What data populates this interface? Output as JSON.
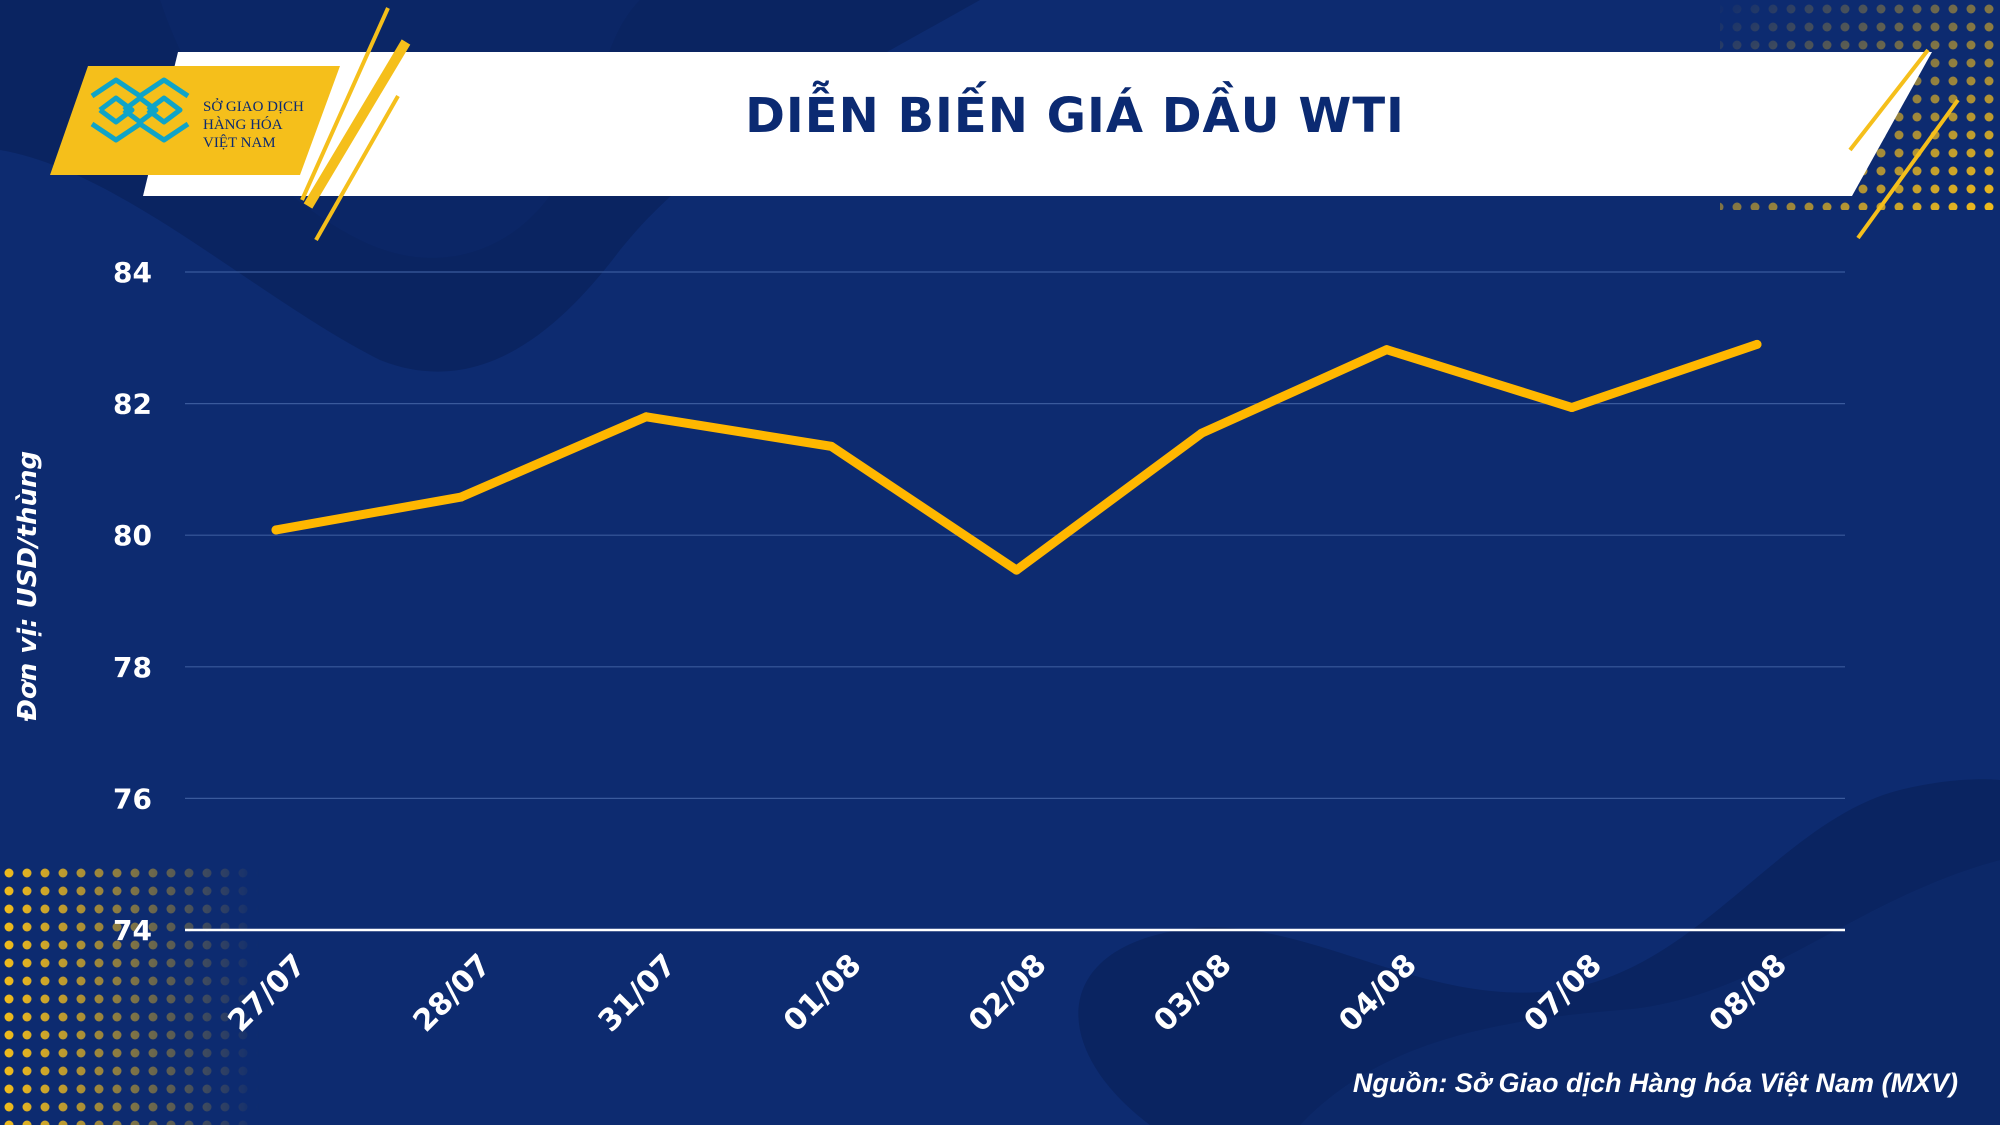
{
  "header": {
    "title": "DIỄN BIẾN GIÁ DẦU WTI",
    "logo_lines": [
      "SỞ GIAO DỊCH",
      "HÀNG HÓA",
      "VIỆT NAM"
    ]
  },
  "colors": {
    "background": "#0d2b70",
    "line": "#ffb700",
    "accent": "#f5bf1b",
    "title": "#0b2a72"
  },
  "chart_data": {
    "type": "line",
    "ylabel": "Đơn vị: USD/thùng",
    "ylim": [
      74,
      84
    ],
    "yticks": [
      74,
      76,
      78,
      80,
      82,
      84
    ],
    "grid": true,
    "categories": [
      "27/07",
      "28/07",
      "31/07",
      "01/08",
      "02/08",
      "03/08",
      "04/08",
      "07/08",
      "08/08"
    ],
    "series": [
      {
        "values": [
          80.08,
          80.58,
          81.8,
          81.35,
          79.47,
          81.55,
          82.82,
          81.94,
          82.9
        ]
      }
    ]
  },
  "footer": {
    "source": "Nguồn: Sở Giao dịch Hàng hóa Việt Nam (MXV)"
  }
}
